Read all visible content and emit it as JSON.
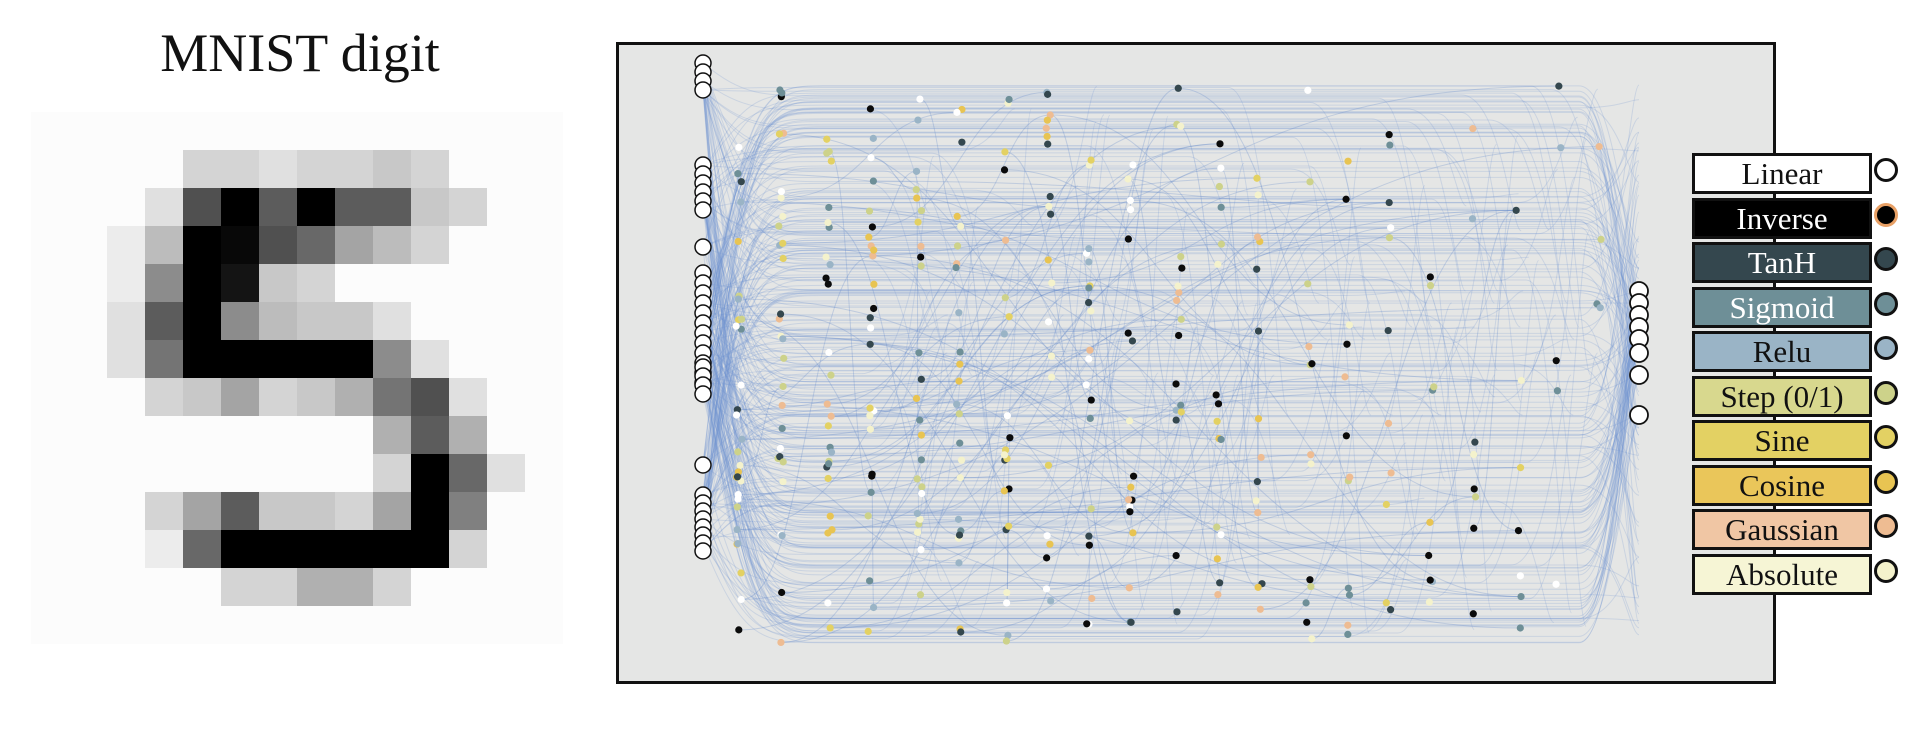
{
  "left_panel": {
    "title": "MNIST digit",
    "image_pixels": [
      "..............",
      "....ccbccdc...",
      "...bnLmLmmdc..",
      "..aeLtnlgec...",
      "..aiLsdc......",
      "..bmLieddb....",
      "..bkLLLLLib...",
      "...cdgcdfknb..",
      ".........fmf..",
      ".........cLlb.",
      "...cgmddcgLj..",
      "...alLLLLLLc..",
      ".....ccffc....",
      ".............."
    ],
    "pixel_legend": "Each character encodes grayscale: '.' = white, 'a'..'t' increasing darkness, 'L' = black"
  },
  "network": {
    "input_nodes": 28,
    "output_nodes": 10,
    "hidden_node_colors": [
      "#ffffff",
      "#0b0b0b",
      "#34474e",
      "#6e8f97",
      "#9ab4c6",
      "#cdd28a",
      "#e3d163",
      "#e8c452",
      "#eebc92",
      "#f4f2cc"
    ]
  },
  "legend": {
    "items": [
      {
        "label": "Linear",
        "bg": "#ffffff",
        "fg": "#111111",
        "dot": "#ffffff",
        "ring": "#111111"
      },
      {
        "label": "Inverse",
        "bg": "#000000",
        "fg": "#ffffff",
        "dot": "#000000",
        "ring": "#e8a065"
      },
      {
        "label": "TanH",
        "bg": "#34474e",
        "fg": "#ffffff",
        "dot": "#34474e",
        "ring": "#111111"
      },
      {
        "label": "Sigmoid",
        "bg": "#6e8f97",
        "fg": "#ffffff",
        "dot": "#6e8f97",
        "ring": "#111111"
      },
      {
        "label": "Relu",
        "bg": "#9ab4c6",
        "fg": "#111111",
        "dot": "#9ab4c6",
        "ring": "#111111"
      },
      {
        "label": "Step (0/1)",
        "bg": "#d8d88e",
        "fg": "#111111",
        "dot": "#cdd28a",
        "ring": "#111111"
      },
      {
        "label": "Sine",
        "bg": "#e3d163",
        "fg": "#111111",
        "dot": "#e3d163",
        "ring": "#111111"
      },
      {
        "label": "Cosine",
        "bg": "#eac65a",
        "fg": "#111111",
        "dot": "#e8c452",
        "ring": "#111111"
      },
      {
        "label": "Gaussian",
        "bg": "#f0c6a4",
        "fg": "#111111",
        "dot": "#eebc92",
        "ring": "#111111"
      },
      {
        "label": "Absolute",
        "bg": "#f6f5d5",
        "fg": "#111111",
        "dot": "#f4f2cc",
        "ring": "#111111"
      }
    ]
  }
}
